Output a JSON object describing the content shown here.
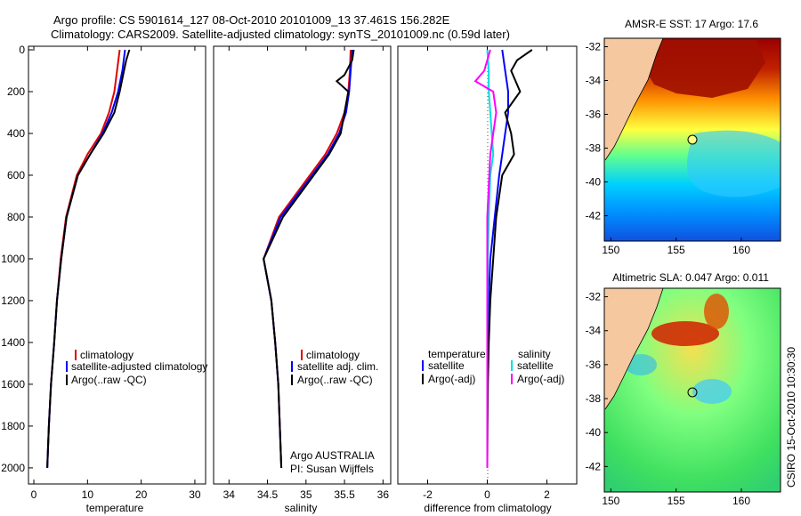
{
  "header": {
    "title_line1": "Argo profile: CS 5901614_127 08-Oct-2010 20101009_13 37.461S 156.282E",
    "title_line2": "Climatology: CARS2009. Satellite-adjusted climatology: synTS_20101009.nc (0.59d later)"
  },
  "credit": "CSIRO 15-Oct-2010 10:30:30",
  "colors": {
    "clim": "#e00000",
    "sat": "#0000ff",
    "argo": "#000000",
    "sal_sat": "#00e0e0",
    "sal_argo": "#ff00ff",
    "land": "#f5c8a0"
  },
  "chart_data": [
    {
      "type": "line",
      "id": "temperature",
      "xlabel": "temperature",
      "xlim": [
        -1,
        32
      ],
      "ylim": [
        2060,
        0
      ],
      "xticks": [
        0,
        10,
        20,
        30
      ],
      "yticks": [
        0,
        200,
        400,
        600,
        800,
        1000,
        1200,
        1400,
        1600,
        1800,
        2000
      ],
      "legend": [
        "climatology",
        "satellite-adjusted climatology",
        "Argo(..raw -QC)"
      ],
      "series": [
        {
          "name": "climatology",
          "color": "clim",
          "x": [
            16,
            15.5,
            15,
            14,
            12.5,
            10,
            8,
            6,
            5,
            4.3,
            3.8,
            3.2,
            2.8,
            2.5
          ],
          "y": [
            0,
            100,
            200,
            300,
            400,
            500,
            600,
            800,
            1000,
            1200,
            1400,
            1600,
            1800,
            2000
          ]
        },
        {
          "name": "satellite-adjusted climatology",
          "color": "sat",
          "x": [
            17,
            16.5,
            15.7,
            14.5,
            12.8,
            10.5,
            8.2,
            6.1,
            5.1,
            4.3,
            3.8,
            3.2,
            2.8,
            2.5
          ],
          "y": [
            0,
            100,
            200,
            300,
            400,
            500,
            600,
            800,
            1000,
            1200,
            1400,
            1600,
            1800,
            2000
          ]
        },
        {
          "name": "Argo(..raw -QC)",
          "color": "argo",
          "x": [
            17.8,
            17.2,
            16.8,
            16,
            15,
            13,
            10.5,
            8.2,
            6.1,
            5.1,
            4.3,
            3.8,
            3.2,
            2.8,
            2.5
          ],
          "y": [
            0,
            50,
            100,
            200,
            300,
            400,
            500,
            600,
            800,
            1000,
            1200,
            1400,
            1600,
            1800,
            2000
          ]
        }
      ]
    },
    {
      "type": "line",
      "id": "salinity",
      "xlabel": "salinity",
      "xlim": [
        33.8,
        36.1
      ],
      "ylim": [
        2060,
        0
      ],
      "xticks": [
        34,
        34.5,
        35,
        35.5,
        36
      ],
      "legend": [
        "climatology",
        "satellite adj. clim.",
        "Argo(..raw -QC)"
      ],
      "annotation": [
        "Argo AUSTRALIA",
        "PI: Susan Wijffels"
      ],
      "series": [
        {
          "name": "climatology",
          "color": "clim",
          "x": [
            35.58,
            35.57,
            35.55,
            35.5,
            35.4,
            35.25,
            35.05,
            34.65,
            34.45,
            34.55,
            34.6,
            34.64,
            34.66,
            34.68
          ],
          "y": [
            0,
            100,
            200,
            300,
            400,
            500,
            600,
            800,
            1000,
            1200,
            1400,
            1600,
            1800,
            2000
          ]
        },
        {
          "name": "satellite adj. clim.",
          "color": "sat",
          "x": [
            35.6,
            35.58,
            35.56,
            35.52,
            35.43,
            35.28,
            35.08,
            34.67,
            34.45,
            34.55,
            34.6,
            34.64,
            34.66,
            34.68
          ],
          "y": [
            0,
            100,
            200,
            300,
            400,
            500,
            600,
            800,
            1000,
            1200,
            1400,
            1600,
            1800,
            2000
          ]
        },
        {
          "name": "Argo(..raw -QC)",
          "color": "argo",
          "x": [
            35.62,
            35.6,
            35.5,
            35.4,
            35.55,
            35.5,
            35.45,
            35.3,
            35.1,
            34.7,
            34.45,
            34.55,
            34.6,
            34.64,
            34.66,
            34.68
          ],
          "y": [
            0,
            50,
            120,
            150,
            200,
            300,
            400,
            500,
            600,
            800,
            1000,
            1200,
            1400,
            1600,
            1800,
            2000
          ]
        }
      ]
    },
    {
      "type": "line",
      "id": "difference",
      "xlabel": "difference from climatology",
      "xlim": [
        -3,
        3
      ],
      "ylim": [
        2060,
        0
      ],
      "xticks": [
        -2,
        0,
        2
      ],
      "legend_left": {
        "title": "temperature",
        "items": [
          "satellite",
          "Argo(-adj)"
        ]
      },
      "legend_right": {
        "title": "salinity",
        "items": [
          "satellite",
          "Argo(-adj)"
        ]
      },
      "series": [
        {
          "name": "temperature satellite",
          "color": "sat",
          "x": [
            0.5,
            0.6,
            0.7,
            0.7,
            0.6,
            0.5,
            0.4,
            0.25,
            0.1,
            0.05,
            0.02,
            0.01,
            0,
            0
          ],
          "y": [
            0,
            100,
            200,
            300,
            400,
            500,
            600,
            800,
            1000,
            1200,
            1400,
            1600,
            1800,
            2000
          ]
        },
        {
          "name": "temperature Argo(-adj)",
          "color": "argo",
          "x": [
            1.5,
            1,
            0.8,
            1.1,
            0.6,
            0.8,
            0.9,
            0.5,
            0.3,
            0.2,
            0.1,
            0.05,
            0.02,
            0.01,
            0
          ],
          "y": [
            0,
            50,
            100,
            200,
            300,
            400,
            500,
            600,
            800,
            1000,
            1200,
            1400,
            1600,
            1800,
            2000
          ]
        },
        {
          "name": "salinity satellite",
          "color": "sal_sat",
          "x": [
            0,
            0.05,
            0.05,
            0.1,
            0.15,
            0.2,
            0.1,
            0.05,
            0.02,
            0.01,
            0,
            0
          ],
          "y": [
            0,
            100,
            200,
            300,
            400,
            500,
            600,
            800,
            1000,
            1200,
            1400,
            2000
          ]
        },
        {
          "name": "salinity Argo(-adj)",
          "color": "sal_argo",
          "x": [
            0.1,
            -0.1,
            -0.4,
            0.2,
            0.3,
            0.1,
            0,
            0,
            0
          ],
          "y": [
            0,
            100,
            150,
            200,
            300,
            500,
            800,
            1200,
            2000
          ]
        }
      ]
    }
  ],
  "maps": [
    {
      "id": "sst",
      "title": "AMSR-E SST: 17 Argo: 17.6",
      "xticks": [
        150,
        155,
        160
      ],
      "yticks": [
        -32,
        -34,
        -36,
        -38,
        -40,
        -42
      ]
    },
    {
      "id": "sla",
      "title": "Altimetric SLA: 0.047 Argo: 0.011",
      "xticks": [
        150,
        155,
        160
      ],
      "yticks": [
        -32,
        -34,
        -36,
        -38,
        -40,
        -42
      ]
    }
  ],
  "argo_position": {
    "lon": 156.282,
    "lat": -37.461
  }
}
